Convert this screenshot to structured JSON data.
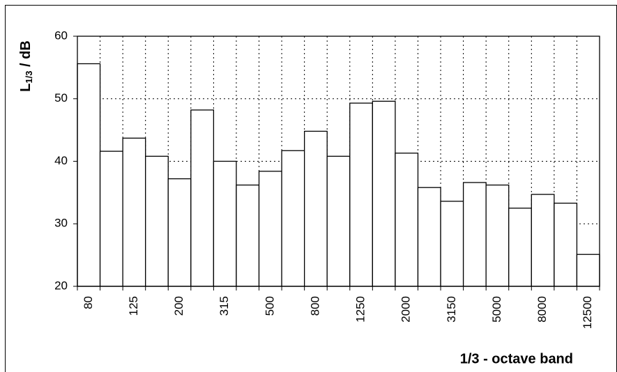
{
  "chart_data": {
    "type": "bar",
    "y_label": {
      "main": "L",
      "sub": "1/3",
      "rest": " / dB"
    },
    "x_label": "1/3 - octave band",
    "categories": [
      "80",
      null,
      "125",
      null,
      "200",
      null,
      "315",
      null,
      "500",
      null,
      "800",
      null,
      "1250",
      null,
      "2000",
      null,
      "3150",
      null,
      "5000",
      null,
      "8000",
      null,
      "12500"
    ],
    "values": [
      55.6,
      41.6,
      43.7,
      40.8,
      37.2,
      48.2,
      40.0,
      36.2,
      38.4,
      41.7,
      44.8,
      40.8,
      49.3,
      49.6,
      41.3,
      35.8,
      33.6,
      36.6,
      36.2,
      32.5,
      34.7,
      33.3,
      25.1
    ],
    "color": "#ffffff",
    "edge_color": "#000000",
    "ylim": [
      20,
      60
    ],
    "yticks": [
      20,
      30,
      40,
      50,
      60
    ],
    "grid": true
  }
}
